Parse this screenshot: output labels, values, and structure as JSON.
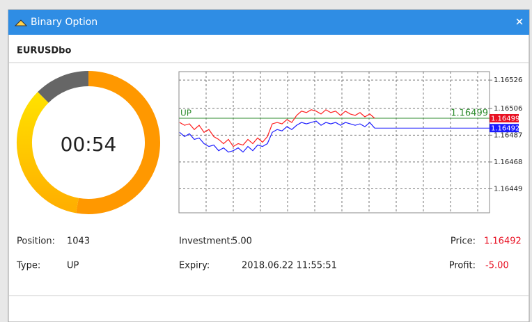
{
  "window": {
    "title": "Binary Option",
    "close": "✕"
  },
  "symbol": "EURUSDbo",
  "timer": "00:54",
  "chart_data": {
    "type": "line",
    "series": [
      {
        "color": "#ff2020",
        "values": [
          1.16496,
          1.16494,
          1.16495,
          1.16491,
          1.16494,
          1.16489,
          1.16491,
          1.16486,
          1.16484,
          1.16481,
          1.16484,
          1.16479,
          1.16481,
          1.1648,
          1.16484,
          1.16481,
          1.16485,
          1.16482,
          1.16486,
          1.16495,
          1.16496,
          1.16495,
          1.16498,
          1.16496,
          1.16501,
          1.16504,
          1.16503,
          1.16505,
          1.16504,
          1.16502,
          1.16505,
          1.16503,
          1.16504,
          1.16501,
          1.16504,
          1.16502,
          1.16501,
          1.16503,
          1.165,
          1.16502,
          1.16499
        ]
      },
      {
        "color": "#2020ff",
        "values": [
          1.16489,
          1.16486,
          1.16488,
          1.16484,
          1.16485,
          1.16481,
          1.16479,
          1.1648,
          1.16476,
          1.16478,
          1.16475,
          1.16476,
          1.16478,
          1.16475,
          1.16479,
          1.16476,
          1.1648,
          1.16479,
          1.16481,
          1.16489,
          1.16491,
          1.1649,
          1.16493,
          1.16491,
          1.16494,
          1.16496,
          1.16495,
          1.16496,
          1.16497,
          1.16494,
          1.16496,
          1.16495,
          1.16496,
          1.16494,
          1.16496,
          1.16495,
          1.16494,
          1.16495,
          1.16493,
          1.16496,
          1.16492
        ]
      }
    ],
    "open_line": {
      "label": "UP",
      "value": 1.16499,
      "color": "#2e8b2e"
    },
    "price_tags": [
      {
        "value": 1.16499,
        "color": "#e81123"
      },
      {
        "value": 1.16492,
        "color": "#1a1aff"
      }
    ],
    "ylim": [
      1.16432,
      1.16532
    ],
    "yticks": [
      1.16526,
      1.16506,
      1.16487,
      1.16468,
      1.16449
    ],
    "grid": true
  },
  "fields": [
    {
      "label": "Position:",
      "value": "1043"
    },
    {
      "label": "Investment:",
      "value": "5.00"
    },
    {
      "label": "Price:",
      "value": "1.16492"
    },
    {
      "label": "Type:",
      "value": "UP"
    },
    {
      "label": "Expiry:",
      "value": "2018.06.22 11:55:51"
    },
    {
      "label": "Profit:",
      "value": "-5.00"
    }
  ]
}
